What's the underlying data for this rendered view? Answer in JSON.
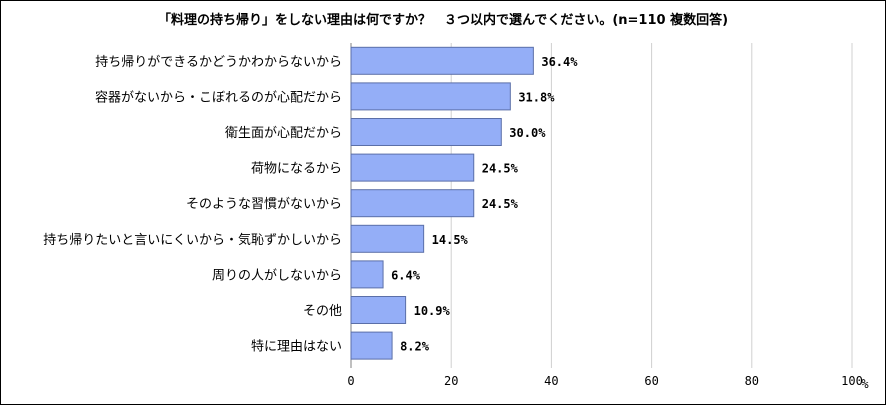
{
  "chart_data": {
    "type": "bar",
    "orientation": "horizontal",
    "title": "「料理の持ち帰り」をしない理由は何ですか？　３つ以内で選んでください。(n=110 複数回答)",
    "categories": [
      "持ち帰りができるかどうかわからないから",
      "容器がないから・こぼれるのが心配だから",
      "衛生面が心配だから",
      "荷物になるから",
      "そのような習慣がないから",
      "持ち帰りたいと言いにくいから・気恥ずかしいから",
      "周りの人がしないから",
      "その他",
      "特に理由はない"
    ],
    "values": [
      36.4,
      31.8,
      30.0,
      24.5,
      24.5,
      14.5,
      6.4,
      10.9,
      8.2
    ],
    "value_labels": [
      "36.4%",
      "31.8%",
      "30.0%",
      "24.5%",
      "24.5%",
      "14.5%",
      "6.4%",
      "10.9%",
      "8.2%"
    ],
    "xlim": [
      0,
      100
    ],
    "xticks": [
      0,
      20,
      40,
      60,
      80,
      100
    ],
    "x_unit": "%",
    "grid": true,
    "bar_color": "#94aef7",
    "bar_edge_color": "#5b6fa8",
    "grid_color": "#d0d0d0"
  }
}
